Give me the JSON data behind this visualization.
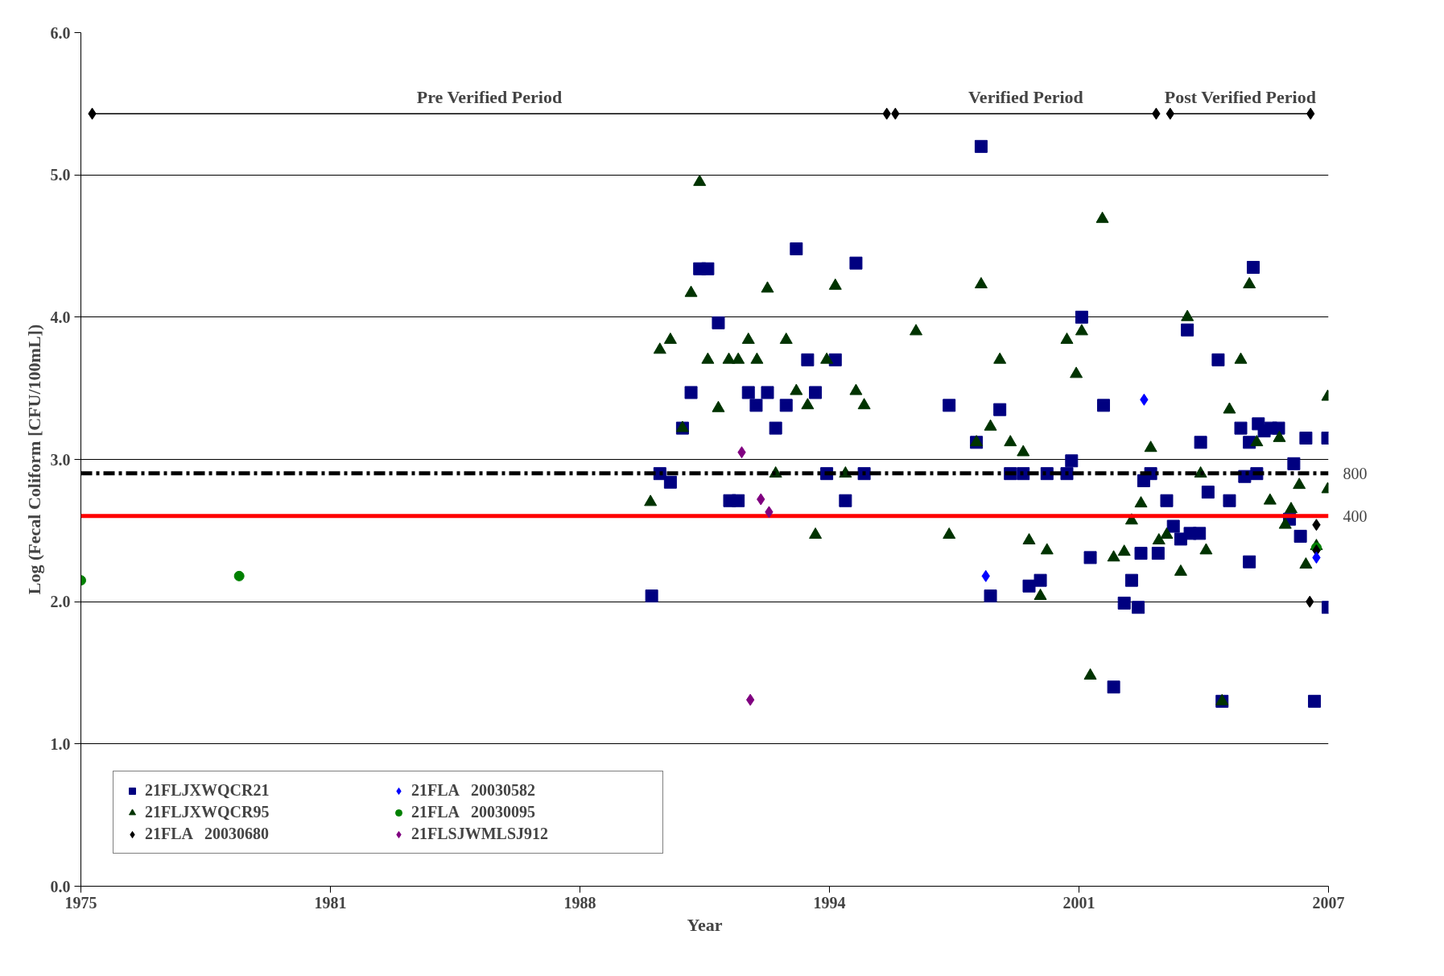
{
  "chart_data": {
    "type": "scatter",
    "xlabel": "Year",
    "ylabel": "Log (Fecal Coliform [CFU/100mL])",
    "xlim": [
      1975,
      2007
    ],
    "xticks": [
      1975,
      {
        "value": 1981.4,
        "label": "1981"
      },
      {
        "value": 1987.8,
        "label": "1988"
      },
      {
        "value": 1994.2,
        "label": "1994"
      },
      {
        "value": 2000.6,
        "label": "2001"
      },
      2007
    ],
    "ylim": [
      0,
      6
    ],
    "yticks": [
      {
        "value": 0,
        "label": "0.0"
      },
      {
        "value": 1,
        "label": "1.0"
      },
      {
        "value": 2,
        "label": "2.0"
      },
      {
        "value": 3,
        "label": "3.0"
      },
      {
        "value": 4,
        "label": "4.0"
      },
      {
        "value": 5,
        "label": "5.0"
      },
      {
        "value": 6,
        "label": "6.0"
      }
    ],
    "grid": "y",
    "legend": "bottom left",
    "series": [
      {
        "name": "21FLJXWQCR21",
        "color": "#000080",
        "marker": "square",
        "x": [
          1989.64,
          1989.85,
          1990.12,
          1990.43,
          1990.65,
          1990.87,
          1991.08,
          1991.35,
          1991.64,
          1991.86,
          1992.12,
          1992.32,
          1992.61,
          1992.82,
          1993.09,
          1993.35,
          1993.64,
          1993.84,
          1994.13,
          1994.35,
          1994.61,
          1994.88,
          1995.09,
          1997.27,
          1997.97,
          1998.09,
          1998.33,
          1998.57,
          1998.84,
          1999.17,
          1999.32,
          1999.61,
          1999.78,
          2000.29,
          2000.41,
          2000.67,
          2000.89,
          2001.23,
          2001.49,
          2001.76,
          2001.95,
          2002.12,
          2002.19,
          2002.26,
          2002.44,
          2002.63,
          2002.85,
          2003.02,
          2003.21,
          2003.45,
          2003.69,
          2003.38,
          2003.72,
          2003.91,
          2004.17,
          2004.27,
          2004.46,
          2004.75,
          2004.85,
          2004.97,
          2004.97,
          2005.07,
          2005.16,
          2005.2,
          2005.35,
          2005.52,
          2005.72,
          2006.0,
          2006.11,
          2006.28,
          2006.42,
          2006.64,
          2006.98,
          2006.99
        ],
        "values": [
          2.04,
          2.9,
          2.84,
          3.22,
          3.47,
          4.34,
          4.34,
          3.96,
          2.71,
          2.71,
          3.47,
          3.38,
          3.47,
          3.22,
          3.38,
          4.48,
          3.7,
          3.47,
          2.9,
          3.7,
          2.71,
          4.38,
          2.9,
          3.38,
          3.12,
          5.2,
          2.04,
          3.35,
          2.9,
          2.9,
          2.11,
          2.15,
          2.9,
          2.9,
          2.99,
          4.0,
          2.31,
          3.38,
          1.4,
          1.99,
          2.15,
          1.96,
          2.34,
          2.85,
          2.9,
          2.34,
          2.71,
          2.53,
          2.44,
          2.48,
          2.48,
          3.91,
          3.12,
          2.77,
          3.7,
          1.3,
          2.71,
          3.22,
          2.88,
          2.28,
          3.12,
          4.35,
          2.9,
          3.25,
          3.2,
          3.22,
          3.22,
          2.58,
          2.97,
          2.46,
          3.15,
          1.3,
          3.15,
          1.96
        ]
      },
      {
        "name": "21FLJXWQCR95",
        "color": "#003300",
        "marker": "triangle",
        "x": [
          1989.61,
          1989.85,
          1990.12,
          1990.43,
          1990.65,
          1990.87,
          1991.08,
          1991.35,
          1991.62,
          1991.86,
          1992.12,
          1992.34,
          1992.61,
          1992.82,
          1993.09,
          1993.35,
          1993.64,
          1993.84,
          1994.13,
          1994.35,
          1994.61,
          1994.88,
          1995.09,
          1996.42,
          1997.27,
          1997.97,
          1998.09,
          1998.33,
          1998.57,
          1998.84,
          1999.17,
          1999.32,
          1999.61,
          1999.78,
          2000.29,
          2000.53,
          2000.67,
          2000.89,
          2001.2,
          2001.49,
          2001.76,
          2001.95,
          2002.19,
          2002.44,
          2002.65,
          2002.85,
          2003.21,
          2003.38,
          2003.72,
          2003.86,
          2004.27,
          2004.46,
          2004.75,
          2004.97,
          2005.16,
          2005.5,
          2005.74,
          2005.89,
          2006.04,
          2006.25,
          2006.42,
          2006.69,
          2006.98,
          2006.98
        ],
        "values": [
          2.7,
          3.77,
          3.84,
          3.22,
          4.17,
          4.95,
          3.7,
          3.36,
          3.7,
          3.7,
          3.84,
          3.7,
          4.2,
          2.9,
          3.84,
          3.48,
          3.38,
          2.47,
          3.7,
          4.22,
          2.9,
          3.48,
          3.38,
          3.9,
          2.47,
          3.12,
          4.23,
          3.23,
          3.7,
          3.12,
          3.05,
          2.43,
          2.04,
          2.36,
          3.84,
          3.6,
          3.9,
          1.48,
          4.69,
          2.31,
          2.35,
          2.57,
          2.69,
          3.08,
          2.43,
          2.47,
          2.21,
          4.0,
          2.9,
          2.36,
          1.3,
          3.35,
          3.7,
          4.23,
          3.12,
          2.71,
          3.15,
          2.54,
          2.65,
          2.82,
          2.26,
          2.39,
          3.44,
          2.79
        ]
      },
      {
        "name": "21FLA   20030680",
        "color": "#000000",
        "marker": "diamond",
        "x": [
          2006.52,
          2006.69,
          2006.69
        ],
        "values": [
          2.0,
          2.36,
          2.54
        ]
      },
      {
        "name": "21FLA   20030582",
        "color": "#0000ff",
        "marker": "diamond",
        "x": [
          1998.21,
          2002.27,
          2006.69
        ],
        "values": [
          2.18,
          3.42,
          2.31
        ]
      },
      {
        "name": "21FLA   20030095",
        "color": "#008000",
        "marker": "circle",
        "x": [
          1975.0,
          1979.06,
          2006.69
        ],
        "values": [
          2.15,
          2.18,
          2.38
        ]
      },
      {
        "name": "21FLSJWMLSJ912",
        "color": "#800080",
        "marker": "diamond",
        "x": [
          1991.95,
          1992.17,
          1992.44,
          1992.65
        ],
        "values": [
          3.05,
          1.31,
          2.72,
          2.63
        ]
      },
      {
        "type": "line",
        "color": "#000000",
        "marker": "diamond",
        "x": [
          1975.29,
          1995.67
        ],
        "values": [
          5.43,
          5.43
        ]
      },
      {
        "type": "line",
        "color": "#000000",
        "marker": "diamond",
        "x": [
          1995.89,
          2002.58
        ],
        "values": [
          5.43,
          5.43
        ]
      },
      {
        "type": "line",
        "color": "#000000",
        "marker": "diamond",
        "x": [
          2002.94,
          2006.54
        ],
        "values": [
          5.43,
          5.43
        ]
      }
    ],
    "ref_lines": [
      {
        "axis": "y",
        "value": 2.903,
        "color": "#000000",
        "line_style": "dashed"
      },
      {
        "axis": "y",
        "value": 2.602,
        "color": "#ff0000",
        "line_style": "solid"
      }
    ],
    "annotations": [
      {
        "text": "800",
        "x": 2007,
        "y": 2.903
      },
      {
        "text": "400",
        "x": 2007,
        "y": 2.602
      },
      {
        "text": "Pre Verified Period",
        "x": 1985.48,
        "y": 5.43
      },
      {
        "text": "Verified Period",
        "x": 1999.235,
        "y": 5.43
      },
      {
        "text": "Post Verified Period",
        "x": 2004.74,
        "y": 5.43
      }
    ]
  }
}
